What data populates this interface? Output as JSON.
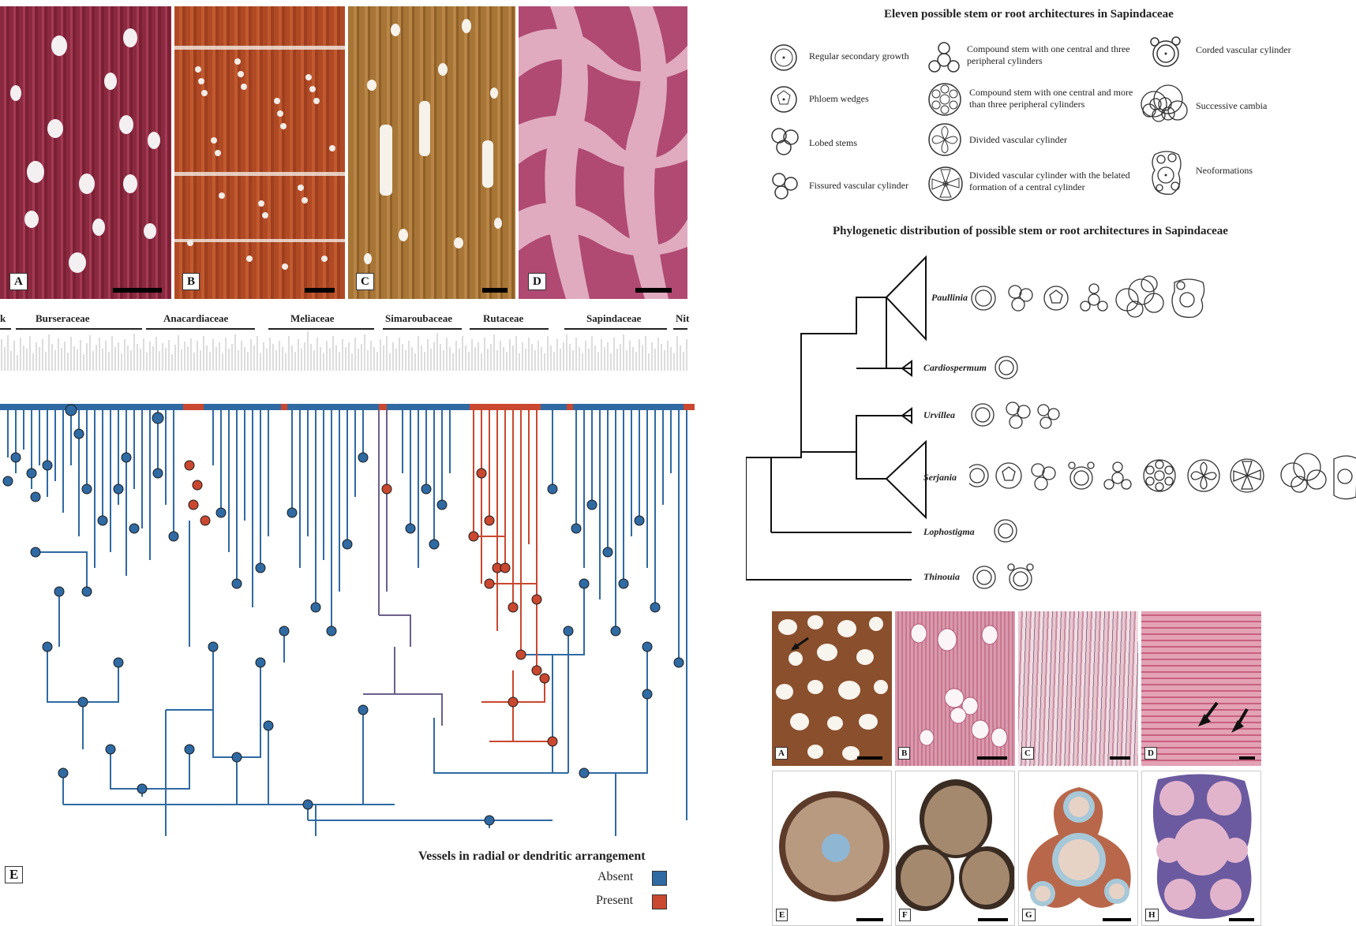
{
  "wood_panels": {
    "labels": [
      "A",
      "B",
      "C",
      "D"
    ]
  },
  "families": [
    "k",
    "Burseraceae",
    "Anacardiaceae",
    "Meliaceae",
    "Simaroubaceae",
    "Rutaceae",
    "Sapindaceae",
    "Nit"
  ],
  "tree_panel_label": "E",
  "legend": {
    "title": "Vessels in radial or dendritic arrangement",
    "absent_label": "Absent",
    "present_label": "Present",
    "absent_color": "#2f6aa3",
    "present_color": "#c9482f"
  },
  "architectures": {
    "title": "Eleven possible stem or root architectures in Sapindaceae",
    "items": [
      "Regular secondary growth",
      "Phloem wedges",
      "Lobed stems",
      "Fissured vascular cylinder",
      "Compound stem with one central and three peripheral cylinders",
      "Compound stem with one central and more than three peripheral cylinders",
      "Divided vascular cylinder",
      "Divided vascular cylinder with the belated formation of a central cylinder",
      "Corded vascular cylinder",
      "Successive cambia",
      "Neoformations"
    ]
  },
  "phylogeny": {
    "title": "Phylogenetic distribution of possible stem or root architectures in Sapindaceae",
    "taxa": [
      "Paullinia",
      "Cardiospermum",
      "Urvillea",
      "Serjania",
      "Lophostigma",
      "Thinouia"
    ]
  },
  "micro_panels": {
    "top_labels": [
      "A",
      "B",
      "C",
      "D"
    ],
    "bottom_labels": [
      "E",
      "F",
      "G",
      "H"
    ]
  }
}
